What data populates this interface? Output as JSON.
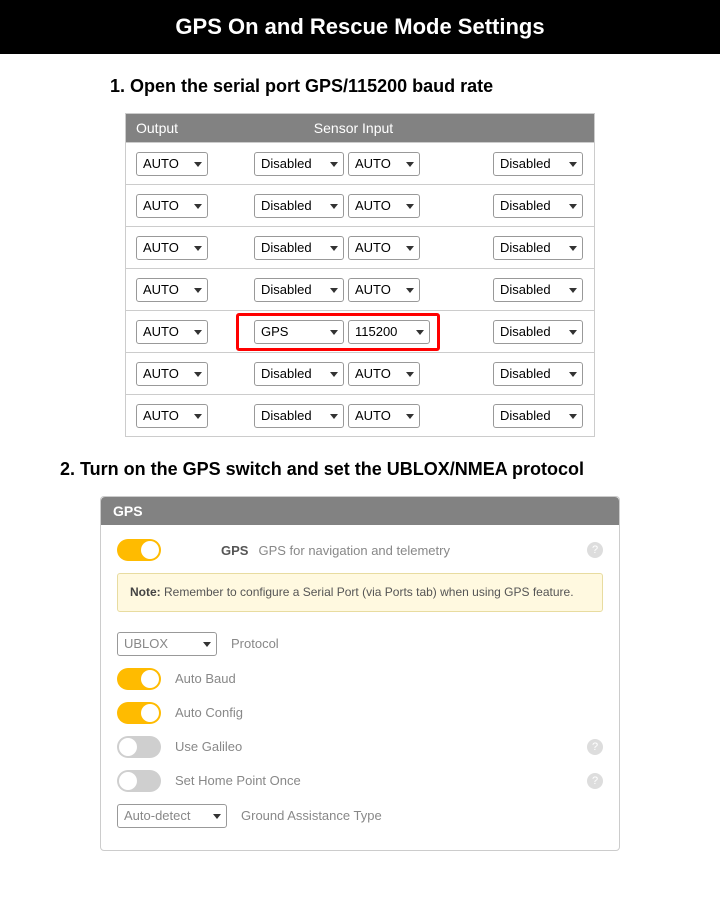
{
  "title": "GPS On and Rescue Mode Settings",
  "step1": {
    "heading": "1. Open the serial port GPS/115200 baud rate",
    "table": {
      "headers": {
        "output": "Output",
        "sensor": "Sensor Input"
      },
      "auto_label": "AUTO",
      "disabled_label": "Disabled",
      "gps_label": "GPS",
      "baud_label": "115200",
      "last_label": "Disabled",
      "row_count": 7,
      "highlighted_row": 4,
      "colors": {
        "header_bg": "#828282",
        "highlight": "#ff0000"
      }
    }
  },
  "step2": {
    "heading": "2. Turn on the GPS switch and set the UBLOX/NMEA protocol",
    "panel_title": "GPS",
    "main_toggle": {
      "label": "GPS",
      "desc": "GPS for navigation and telemetry",
      "on": true
    },
    "note_prefix": "Note:",
    "note_text": " Remember to configure a Serial Port (via Ports tab) when using GPS feature.",
    "protocol": {
      "value": "UBLOX",
      "label": "Protocol"
    },
    "settings": [
      {
        "key": "auto_baud",
        "label": "Auto Baud",
        "on": true,
        "help": false
      },
      {
        "key": "auto_config",
        "label": "Auto Config",
        "on": true,
        "help": false
      },
      {
        "key": "use_galileo",
        "label": "Use Galileo",
        "on": false,
        "help": true
      },
      {
        "key": "set_home",
        "label": "Set Home Point Once",
        "on": false,
        "help": true
      }
    ],
    "ground_assist": {
      "value": "Auto-detect",
      "label": "Ground Assistance Type"
    },
    "colors": {
      "toggle_on": "#ffbb00",
      "toggle_off": "#cfcfcf",
      "note_bg": "#fff9e0",
      "panel_header_bg": "#828282"
    }
  }
}
